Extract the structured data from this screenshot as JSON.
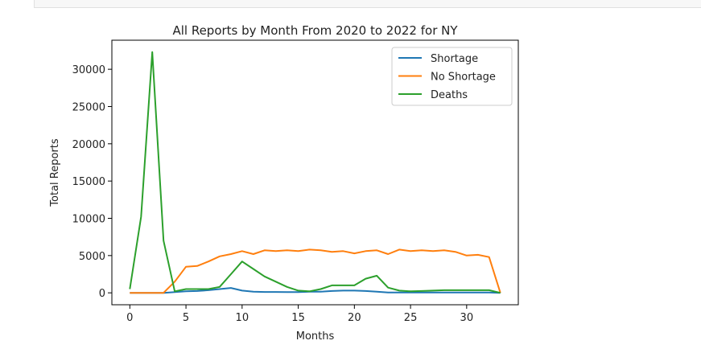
{
  "chart_data": {
    "type": "line",
    "title": "All Reports by Month From 2020 to 2022 for NY",
    "xlabel": "Months",
    "ylabel": "Total Reports",
    "xlim": [
      -1.6,
      34.6
    ],
    "ylim": [
      -1600,
      33900
    ],
    "xticks": [
      0,
      5,
      10,
      15,
      20,
      25,
      30
    ],
    "yticks": [
      0,
      5000,
      10000,
      15000,
      20000,
      25000,
      30000
    ],
    "grid": false,
    "legend_position": "top-right",
    "x": [
      0,
      1,
      2,
      3,
      4,
      5,
      6,
      7,
      8,
      9,
      10,
      11,
      12,
      13,
      14,
      15,
      16,
      17,
      18,
      19,
      20,
      21,
      22,
      23,
      24,
      25,
      26,
      27,
      28,
      29,
      30,
      31,
      32,
      33
    ],
    "series": [
      {
        "name": "Shortage",
        "color": "#1f77b4",
        "values": [
          0,
          0,
          0,
          0,
          100,
          200,
          250,
          350,
          500,
          650,
          300,
          150,
          120,
          120,
          100,
          100,
          150,
          150,
          250,
          300,
          300,
          250,
          150,
          50,
          50,
          50,
          50,
          50,
          50,
          50,
          50,
          50,
          50,
          0
        ]
      },
      {
        "name": "No Shortage",
        "color": "#ff7f0e",
        "values": [
          0,
          0,
          0,
          0,
          1500,
          3500,
          3600,
          4200,
          4900,
          5200,
          5600,
          5200,
          5700,
          5600,
          5700,
          5600,
          5800,
          5700,
          5500,
          5600,
          5300,
          5600,
          5700,
          5200,
          5800,
          5600,
          5700,
          5600,
          5700,
          5500,
          5000,
          5100,
          4800,
          0
        ]
      },
      {
        "name": "Deaths",
        "color": "#2ca02c",
        "values": [
          500,
          10200,
          32300,
          7000,
          200,
          500,
          500,
          500,
          800,
          2500,
          4200,
          3200,
          2200,
          1500,
          800,
          300,
          200,
          500,
          1000,
          1000,
          1000,
          1900,
          2300,
          700,
          300,
          200,
          250,
          300,
          350,
          350,
          350,
          350,
          350,
          0
        ]
      }
    ]
  }
}
